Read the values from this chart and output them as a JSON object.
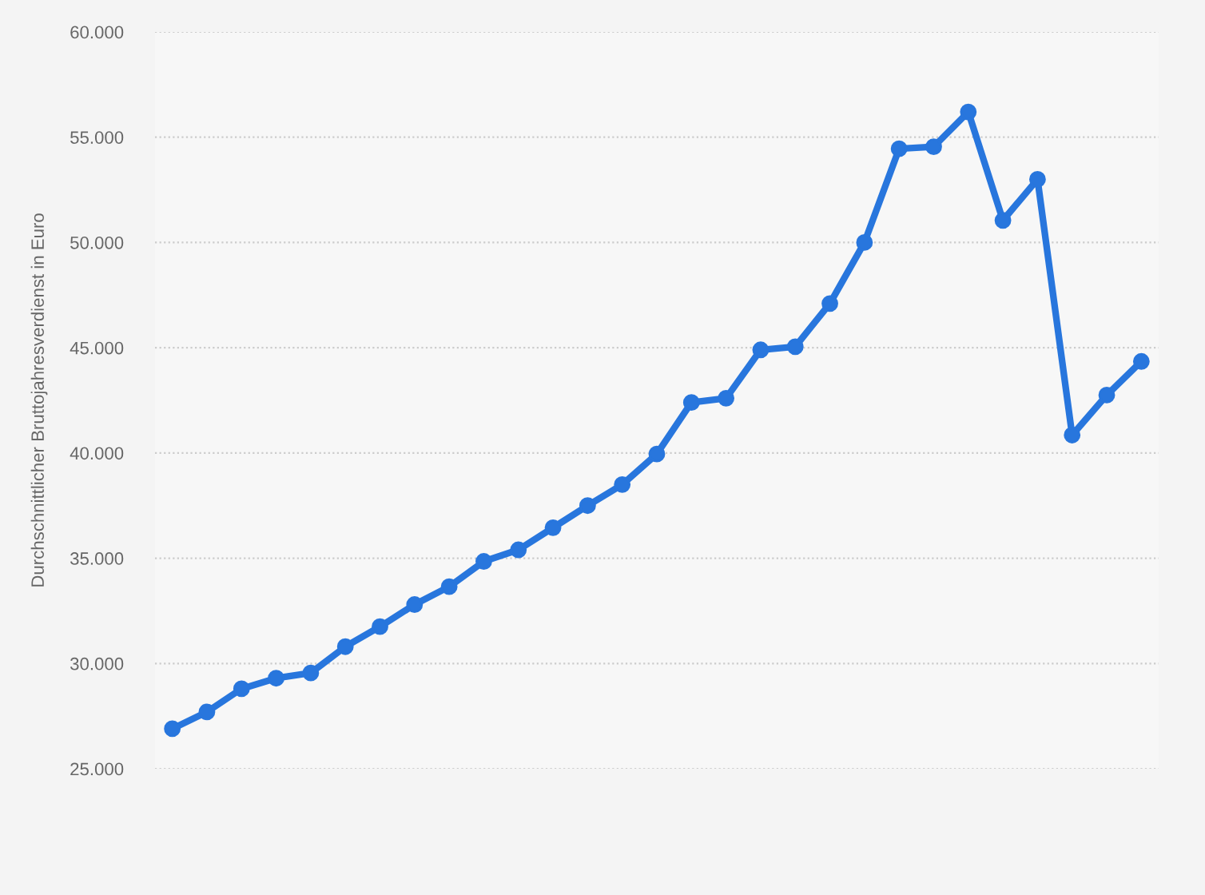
{
  "chart_data": {
    "type": "line",
    "ylabel": "Durchschnittlicher Bruttojahresverdienst in Euro",
    "categories": [
      null,
      null,
      null,
      null,
      null,
      null,
      null,
      null,
      null,
      null,
      null,
      null,
      null,
      null,
      null,
      null,
      null,
      null,
      null,
      null,
      null,
      null,
      null,
      null,
      null,
      null,
      null,
      null,
      null
    ],
    "series": [
      {
        "color": "#2876dd",
        "values": [
          26900,
          27700,
          28800,
          29300,
          29550,
          30800,
          31750,
          32800,
          33650,
          34850,
          35400,
          36450,
          37500,
          38500,
          39950,
          42400,
          42600,
          44900,
          45050,
          47100,
          50000,
          54450,
          54550,
          56200,
          51050,
          53000,
          40850,
          42750,
          44350
        ]
      }
    ],
    "ylim": [
      25000,
      60000
    ],
    "yticks": [
      {
        "value": 25000,
        "label": "25.000"
      },
      {
        "value": 30000,
        "label": "30.000"
      },
      {
        "value": 35000,
        "label": "35.000"
      },
      {
        "value": 40000,
        "label": "40.000"
      },
      {
        "value": 45000,
        "label": "45.000"
      },
      {
        "value": 50000,
        "label": "50.000"
      },
      {
        "value": 55000,
        "label": "55.000"
      },
      {
        "value": 60000,
        "label": "60.000"
      }
    ],
    "grid": "y",
    "marker": "circle",
    "line_style": "solid",
    "tick_labels": "y"
  }
}
